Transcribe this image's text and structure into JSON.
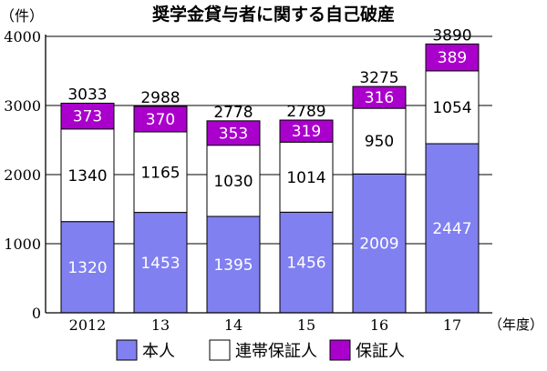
{
  "chart_data": {
    "type": "bar",
    "stacked": true,
    "title": "奨学金貸与者に関する自己破産",
    "y_unit_label": "（件）",
    "x_unit_label": "（年度）",
    "categories": [
      "2012",
      "13",
      "14",
      "15",
      "16",
      "17"
    ],
    "series": [
      {
        "name": "本人",
        "color": "#8080f0",
        "label_color": "#ffffff",
        "values": [
          1320,
          1453,
          1395,
          1456,
          2009,
          2447
        ]
      },
      {
        "name": "連帯保証人",
        "color": "#ffffff",
        "label_color": "#000000",
        "values": [
          1340,
          1165,
          1030,
          1014,
          950,
          1054
        ]
      },
      {
        "name": "保証人",
        "color": "#aa00cc",
        "label_color": "#ffffff",
        "values": [
          373,
          370,
          353,
          319,
          316,
          389
        ]
      }
    ],
    "totals": [
      3033,
      2988,
      2778,
      2789,
      3275,
      3890
    ],
    "ylim": [
      0,
      4000
    ],
    "yticks": [
      0,
      1000,
      2000,
      3000,
      4000
    ],
    "grid": true,
    "legend_position": "bottom"
  }
}
